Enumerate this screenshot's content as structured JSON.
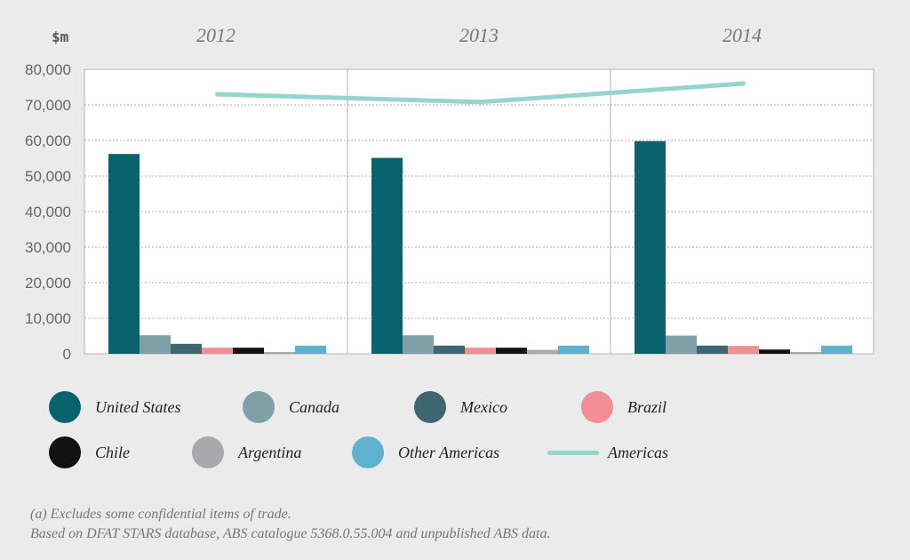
{
  "chart_data": {
    "type": "bar",
    "unit_label": "$m",
    "categories": [
      "2012",
      "2013",
      "2014"
    ],
    "ylim": [
      0,
      80000
    ],
    "yticks": [
      "0",
      "10,000",
      "20,000",
      "30,000",
      "40,000",
      "50,000",
      "60,000",
      "70,000",
      "80,000"
    ],
    "ytick_values": [
      0,
      10000,
      20000,
      30000,
      40000,
      50000,
      60000,
      70000,
      80000
    ],
    "grid": true,
    "series": [
      {
        "name": "United States",
        "color": "#08636f",
        "values": [
          56200,
          55100,
          59800
        ]
      },
      {
        "name": "Canada",
        "color": "#7ea0a6",
        "values": [
          5200,
          5200,
          5100
        ]
      },
      {
        "name": "Mexico",
        "color": "#3e6670",
        "values": [
          2800,
          2300,
          2300
        ]
      },
      {
        "name": "Brazil",
        "color": "#f28c95",
        "values": [
          1700,
          1700,
          2200
        ]
      },
      {
        "name": "Chile",
        "color": "#111111",
        "values": [
          1700,
          1700,
          1200
        ]
      },
      {
        "name": "Argentina",
        "color": "#a9a9ab",
        "values": [
          500,
          1100,
          500
        ]
      },
      {
        "name": "Other Americas",
        "color": "#5fb2cd",
        "values": [
          2300,
          2300,
          2300
        ]
      }
    ],
    "line_series": {
      "name": "Americas",
      "color": "#95d5cd",
      "values": [
        73000,
        70800,
        76000
      ]
    },
    "legend_position": "bottom"
  },
  "notes": {
    "line1": "(a) Excludes some confidential items of trade.",
    "line2": "Based on DFAT STARS database, ABS catalogue 5368.0.55.004 and unpublished ABS data."
  }
}
